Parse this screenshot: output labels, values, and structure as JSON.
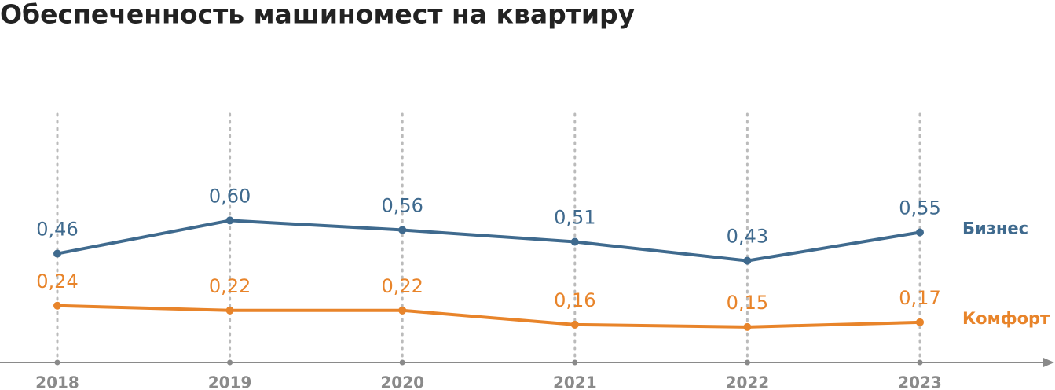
{
  "chart_data": {
    "type": "line",
    "title": "Обеспеченность машиномест на квартиру",
    "categories": [
      "2018",
      "2019",
      "2020",
      "2021",
      "2022",
      "2023"
    ],
    "series": [
      {
        "name": "Бизнес",
        "color": "#3f6a8e",
        "values": [
          0.46,
          0.6,
          0.56,
          0.51,
          0.43,
          0.55
        ],
        "value_labels": [
          "0,46",
          "0,60",
          "0,56",
          "0,51",
          "0,43",
          "0,55"
        ]
      },
      {
        "name": "Комфорт",
        "color": "#e8842a",
        "values": [
          0.24,
          0.22,
          0.22,
          0.16,
          0.15,
          0.17
        ],
        "value_labels": [
          "0,24",
          "0,22",
          "0,22",
          "0,16",
          "0,15",
          "0,17"
        ]
      }
    ],
    "ylim": [
      0,
      1.05
    ],
    "grid": true
  }
}
